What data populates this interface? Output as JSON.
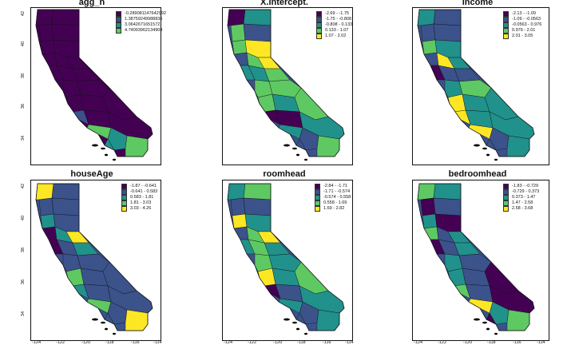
{
  "palette": {
    "c1": "#440154",
    "c2": "#3b528b",
    "c3": "#21918c",
    "c4": "#5ec962",
    "c5": "#fde725"
  },
  "y_ticks": [
    "42",
    "40",
    "38",
    "36",
    "34"
  ],
  "x_ticks": [
    "-124",
    "-122",
    "-120",
    "-118",
    "-116",
    "-114"
  ],
  "panels": [
    {
      "title": "agg_n",
      "legend": [
        {
          "label": "-0.289081147642992",
          "color": "#440154"
        },
        {
          "label": "1.38759249988836",
          "color": "#3b528b"
        },
        {
          "label": "3.0642671651572",
          "color": "#21918c"
        },
        {
          "label": "4.74093962134908",
          "color": "#5ec962"
        }
      ]
    },
    {
      "title": "X.Intercept.",
      "legend": [
        {
          "label": "-2.69 - -1.75",
          "color": "#440154"
        },
        {
          "label": "-1.75 - -0.808",
          "color": "#3b528b"
        },
        {
          "label": "-0.808 - 0.133",
          "color": "#21918c"
        },
        {
          "label": "0.133 - 1.07",
          "color": "#5ec962"
        },
        {
          "label": "1.07 - 2.02",
          "color": "#fde725"
        }
      ]
    },
    {
      "title": "income",
      "legend": [
        {
          "label": "-2.13 - -1.09",
          "color": "#440154"
        },
        {
          "label": "-1.09 - -0.0563",
          "color": "#3b528b"
        },
        {
          "label": "-0.0563 - 0.976",
          "color": "#21918c"
        },
        {
          "label": "0.976 - 2.01",
          "color": "#5ec962"
        },
        {
          "label": "2.01 - 3.05",
          "color": "#fde725"
        }
      ]
    },
    {
      "title": "houseAge",
      "legend": [
        {
          "label": "-1.87 - -0.641",
          "color": "#440154"
        },
        {
          "label": "-0.641 - 0.583",
          "color": "#3b528b"
        },
        {
          "label": "0.583 - 1.81",
          "color": "#21918c"
        },
        {
          "label": "1.81 - 3.03",
          "color": "#5ec962"
        },
        {
          "label": "3.03 - 4.26",
          "color": "#fde725"
        }
      ]
    },
    {
      "title": "roomhead",
      "legend": [
        {
          "label": "-2.84 - -1.71",
          "color": "#440154"
        },
        {
          "label": "-1.71 - -0.574",
          "color": "#3b528b"
        },
        {
          "label": "-0.574 - 0.558",
          "color": "#21918c"
        },
        {
          "label": "0.558 - 1.69",
          "color": "#5ec962"
        },
        {
          "label": "1.69 - 2.82",
          "color": "#fde725"
        }
      ]
    },
    {
      "title": "bedroomhead",
      "legend": [
        {
          "label": "-1.83 - -0.729",
          "color": "#440154"
        },
        {
          "label": "-0.729 - 0.373",
          "color": "#3b528b"
        },
        {
          "label": "0.373 - 1.47",
          "color": "#21918c"
        },
        {
          "label": "1.47 - 2.58",
          "color": "#5ec962"
        },
        {
          "label": "2.58 - 3.68",
          "color": "#fde725"
        }
      ]
    }
  ]
}
